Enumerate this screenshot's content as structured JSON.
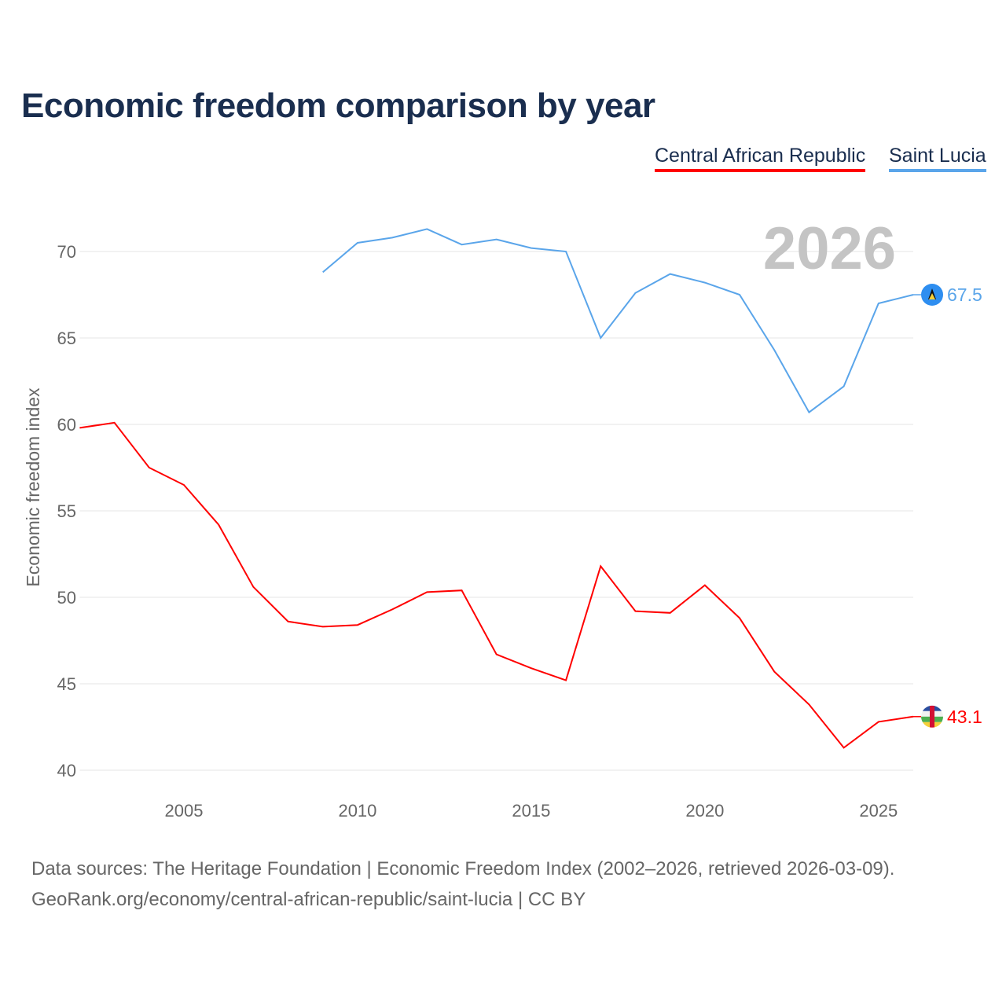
{
  "title": "Economic freedom comparison by year",
  "watermark_year": "2026",
  "footer": {
    "line1": "Data sources: The Heritage Foundation | Economic Freedom Index (2002–2026, retrieved 2026-03-09).",
    "line2": "GeoRank.org/economy/central-african-republic/saint-lucia | CC BY"
  },
  "chart_data": {
    "type": "line",
    "title": "Economic freedom comparison by year",
    "xlabel": "",
    "ylabel": "Economic freedom index",
    "xlim": [
      2002,
      2026
    ],
    "ylim": [
      38,
      72.5
    ],
    "yticks": [
      40,
      45,
      50,
      55,
      60,
      65,
      70
    ],
    "xticks": [
      2005,
      2010,
      2015,
      2020,
      2025
    ],
    "grid": true,
    "legend_position": "top-right",
    "series": [
      {
        "name": "Central African Republic",
        "color": "#ff0000",
        "end_label": "43.1",
        "x": [
          2002,
          2003,
          2004,
          2005,
          2006,
          2007,
          2008,
          2009,
          2010,
          2011,
          2012,
          2013,
          2014,
          2015,
          2016,
          2017,
          2018,
          2019,
          2020,
          2021,
          2022,
          2023,
          2024,
          2025,
          2026
        ],
        "values": [
          59.8,
          60.1,
          57.5,
          56.5,
          54.2,
          50.6,
          48.6,
          48.3,
          48.4,
          49.3,
          50.3,
          50.4,
          46.7,
          45.9,
          45.2,
          51.8,
          49.2,
          49.1,
          50.7,
          48.8,
          45.7,
          43.8,
          41.3,
          42.8,
          43.1
        ]
      },
      {
        "name": "Saint Lucia",
        "color": "#5aa5ea",
        "end_label": "67.5",
        "x": [
          2009,
          2010,
          2011,
          2012,
          2013,
          2014,
          2015,
          2016,
          2017,
          2018,
          2019,
          2020,
          2021,
          2022,
          2023,
          2024,
          2025,
          2026
        ],
        "values": [
          68.8,
          70.5,
          70.8,
          71.3,
          70.4,
          70.7,
          70.2,
          70.0,
          65.0,
          67.6,
          68.7,
          68.2,
          67.5,
          64.3,
          60.7,
          62.2,
          67.0,
          67.5
        ]
      }
    ]
  }
}
